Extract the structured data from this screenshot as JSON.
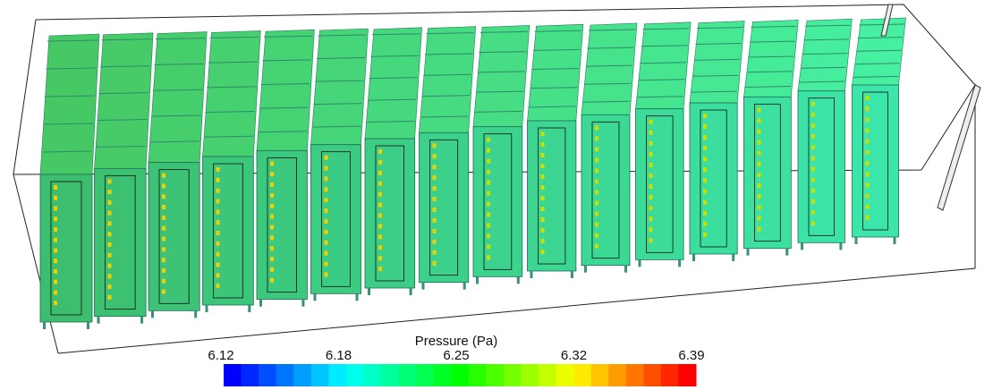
{
  "colorbar": {
    "title": "Pressure (Pa)",
    "ticks": [
      "6.12",
      "6.18",
      "6.25",
      "6.32",
      "6.39"
    ]
  }
}
